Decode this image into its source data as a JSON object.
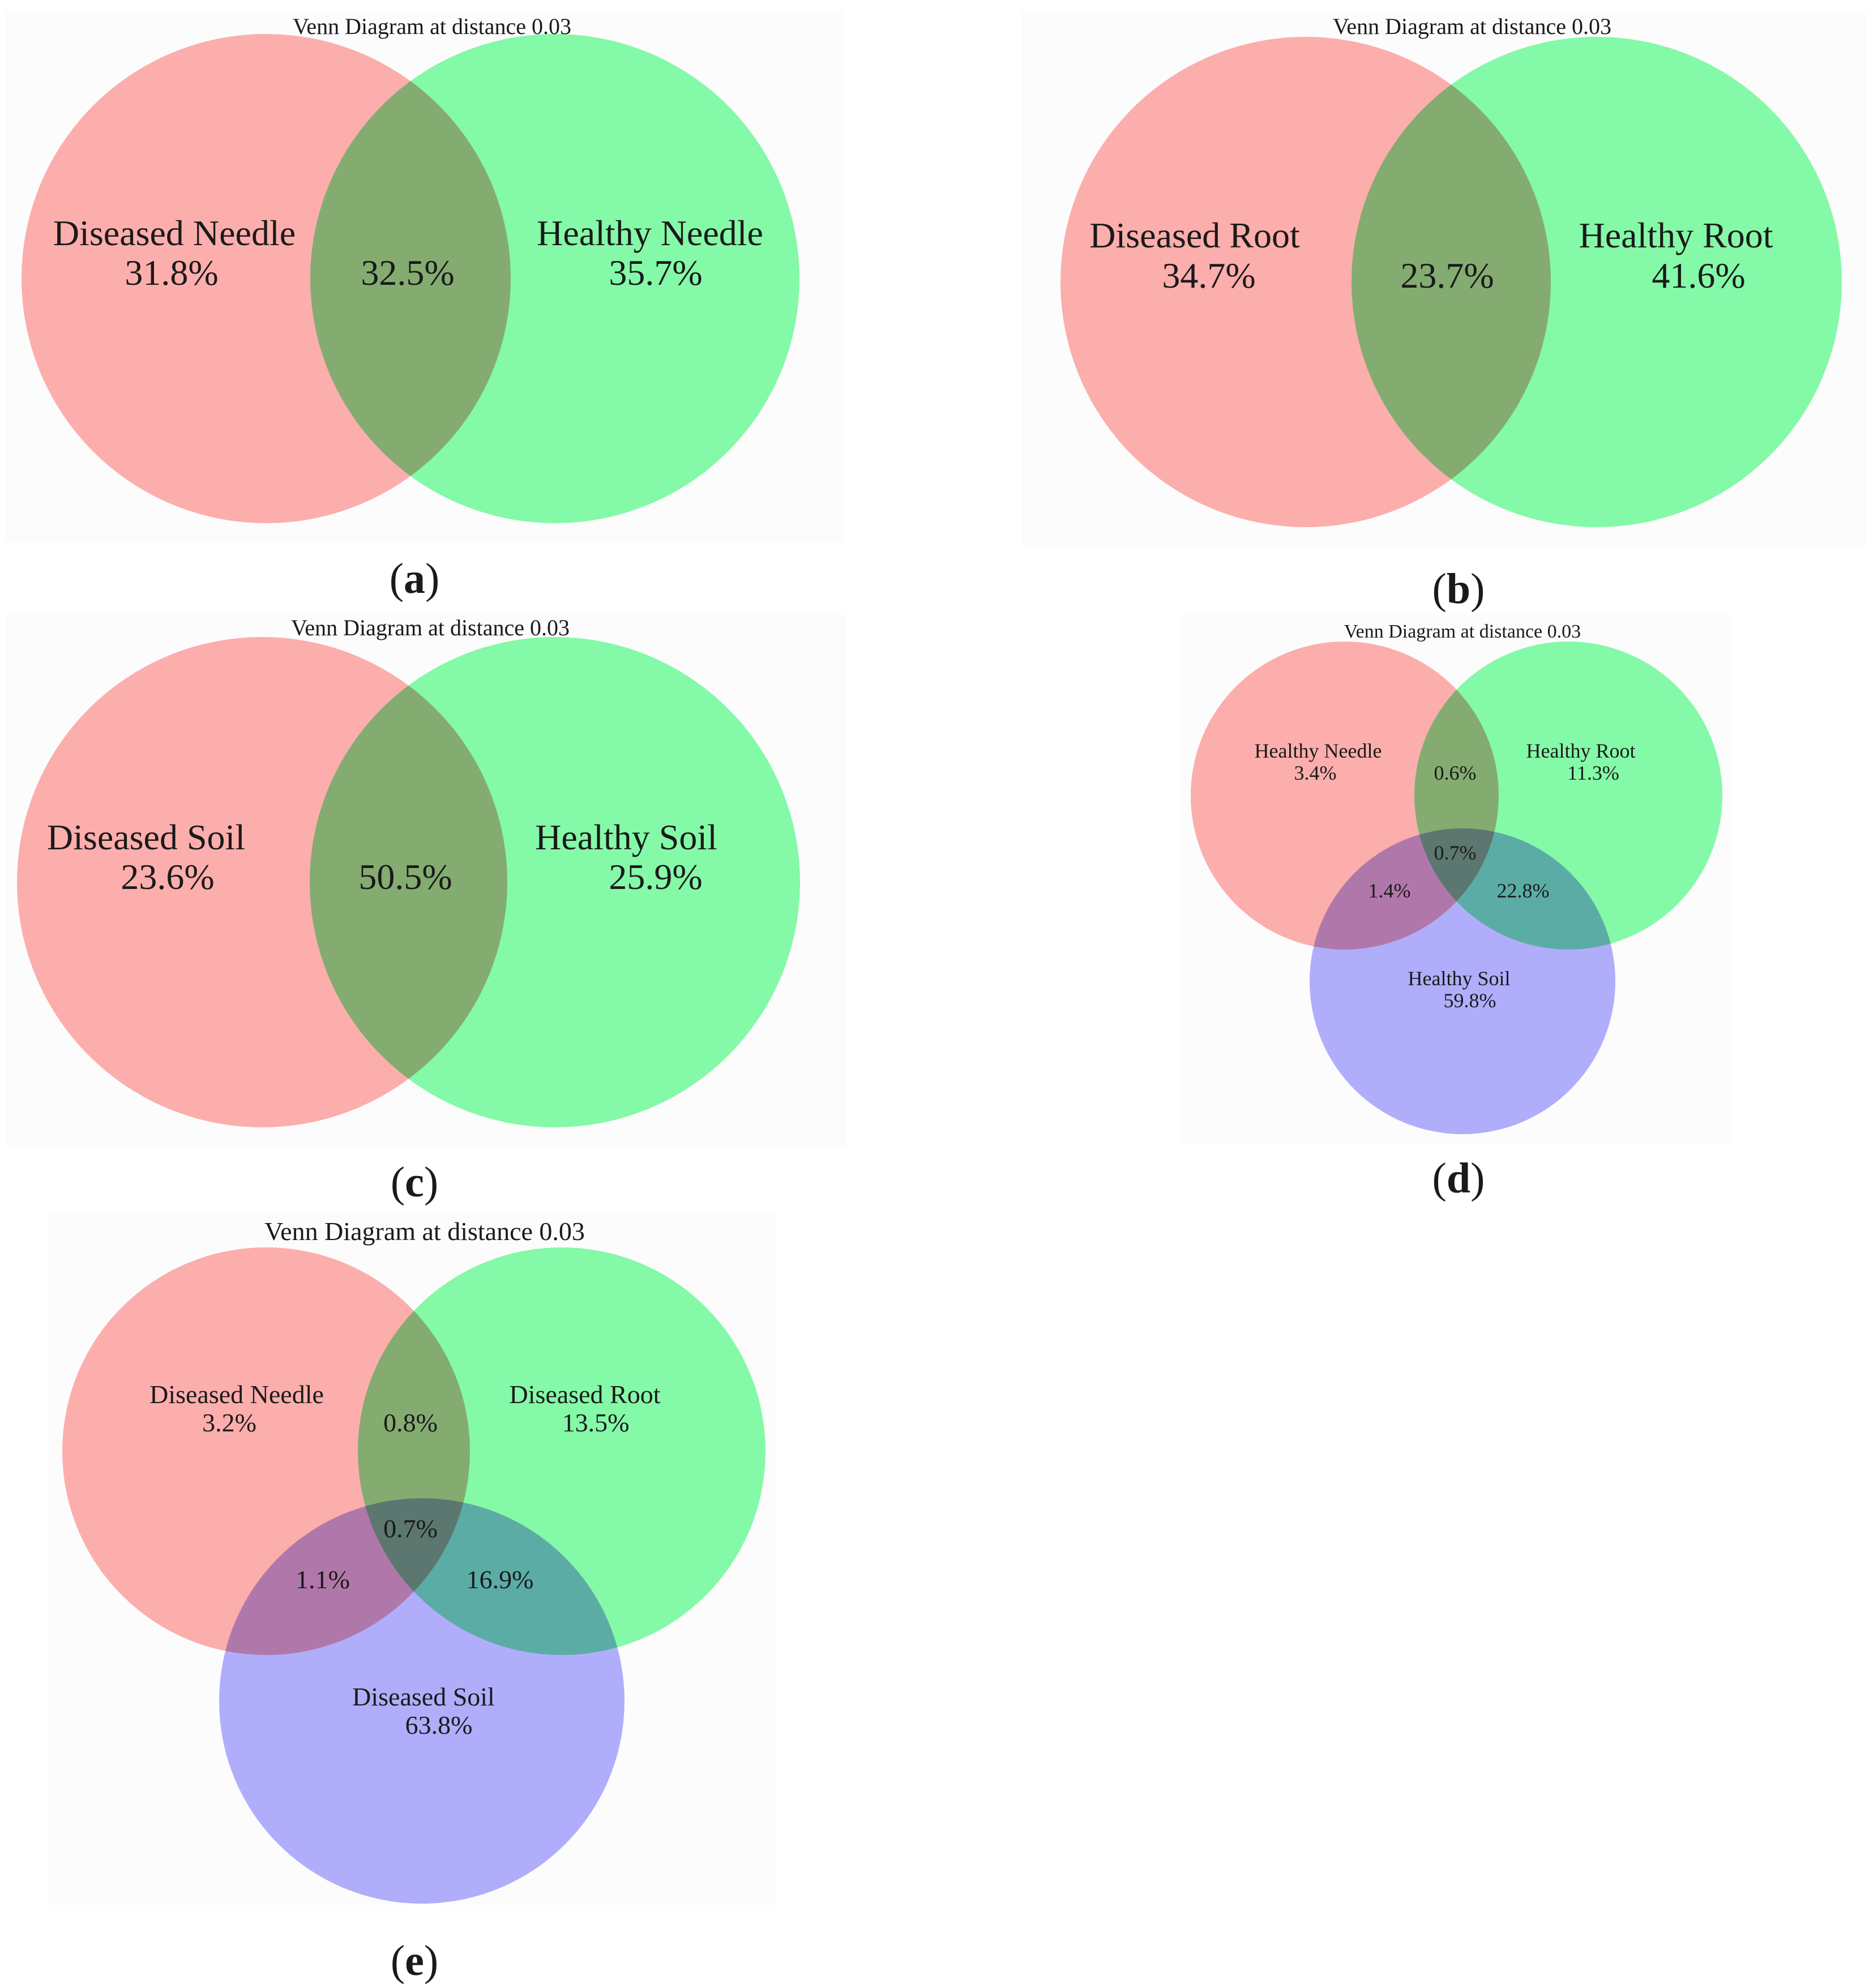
{
  "colors": {
    "red_set": "#ffb0ae",
    "green_set": "#86fca8",
    "blue_set": "#b2b0fd",
    "red_green_overlap": "#a3be6f",
    "red_blue_overlap": "#c16cbd",
    "green_blue_overlap": "#59a7c7",
    "triple_overlap": "#70707c",
    "text": "#1a1a1a"
  },
  "panels": [
    {
      "id": "a",
      "caption": "a",
      "title": "Venn Diagram at distance 0.03",
      "sets": [
        {
          "name": "Diseased Needle",
          "percent": "31.8%",
          "color": "red"
        },
        {
          "name": "Healthy Needle",
          "percent": "35.7%",
          "color": "green"
        }
      ],
      "overlaps": [
        {
          "sets": [
            "Diseased Needle",
            "Healthy Needle"
          ],
          "percent": "32.5%"
        }
      ]
    },
    {
      "id": "b",
      "caption": "b",
      "title": "Venn Diagram at distance 0.03",
      "sets": [
        {
          "name": "Diseased Root",
          "percent": "34.7%",
          "color": "red"
        },
        {
          "name": "Healthy Root",
          "percent": "41.6%",
          "color": "green"
        }
      ],
      "overlaps": [
        {
          "sets": [
            "Diseased Root",
            "Healthy Root"
          ],
          "percent": "23.7%"
        }
      ]
    },
    {
      "id": "c",
      "caption": "c",
      "title": "Venn Diagram at distance 0.03",
      "sets": [
        {
          "name": "Diseased Soil",
          "percent": "23.6%",
          "color": "red"
        },
        {
          "name": "Healthy Soil",
          "percent": "25.9%",
          "color": "green"
        }
      ],
      "overlaps": [
        {
          "sets": [
            "Diseased Soil",
            "Healthy Soil"
          ],
          "percent": "50.5%"
        }
      ]
    },
    {
      "id": "d",
      "caption": "d",
      "title": "Venn Diagram at distance 0.03",
      "sets": [
        {
          "name": "Healthy Needle",
          "percent": "3.4%",
          "color": "red"
        },
        {
          "name": "Healthy Root",
          "percent": "11.3%",
          "color": "green"
        },
        {
          "name": "Healthy Soil",
          "percent": "59.8%",
          "color": "blue"
        }
      ],
      "overlaps": [
        {
          "sets": [
            "Healthy Needle",
            "Healthy Root"
          ],
          "percent": "0.6%"
        },
        {
          "sets": [
            "Healthy Needle",
            "Healthy Soil"
          ],
          "percent": "1.4%"
        },
        {
          "sets": [
            "Healthy Root",
            "Healthy Soil"
          ],
          "percent": "22.8%"
        },
        {
          "sets": [
            "Healthy Needle",
            "Healthy Root",
            "Healthy Soil"
          ],
          "percent": "0.7%"
        }
      ]
    },
    {
      "id": "e",
      "caption": "e",
      "title": "Venn Diagram at distance 0.03",
      "sets": [
        {
          "name": "Diseased Needle",
          "percent": "3.2%",
          "color": "red"
        },
        {
          "name": "Diseased Root",
          "percent": "13.5%",
          "color": "green"
        },
        {
          "name": "Diseased Soil",
          "percent": "63.8%",
          "color": "blue"
        }
      ],
      "overlaps": [
        {
          "sets": [
            "Diseased Needle",
            "Diseased Root"
          ],
          "percent": "0.8%"
        },
        {
          "sets": [
            "Diseased Needle",
            "Diseased Soil"
          ],
          "percent": "1.1%"
        },
        {
          "sets": [
            "Diseased Root",
            "Diseased Soil"
          ],
          "percent": "16.9%"
        },
        {
          "sets": [
            "Diseased Needle",
            "Diseased Root",
            "Diseased Soil"
          ],
          "percent": "0.7%"
        }
      ]
    }
  ]
}
